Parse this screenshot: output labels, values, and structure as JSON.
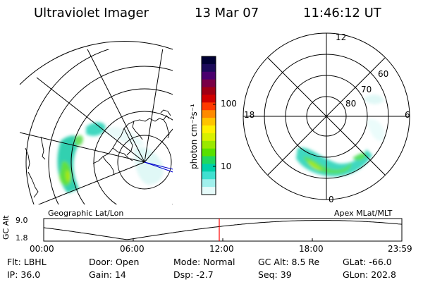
{
  "header": {
    "instrument": "Ultraviolet Imager",
    "date": "13 Mar 07",
    "time": "11:46:12 UT"
  },
  "colorbar": {
    "unit_label": "photon cm⁻²s⁻¹",
    "ticks": [
      "100",
      "10"
    ],
    "colors": [
      "#000033",
      "#1b0a5a",
      "#4a006e",
      "#7a0046",
      "#a00014",
      "#d00000",
      "#ff3a00",
      "#ff8a00",
      "#ffc400",
      "#fff000",
      "#d8f000",
      "#9ae800",
      "#58e000",
      "#20d860",
      "#00d0a8",
      "#40e0d0",
      "#a0f0ec",
      "#e6fbfa"
    ]
  },
  "left_map": {
    "caption": "Geographic Lat/Lon"
  },
  "right_map": {
    "caption": "Apex MLat/MLT",
    "mlt_labels": {
      "top": "12",
      "left": "18",
      "right": "6",
      "bottom": "0"
    },
    "lat_labels": [
      "60",
      "70",
      "80"
    ]
  },
  "timeline": {
    "axis_title": "GC Alt",
    "y_ticks": [
      "9.0",
      "1.8"
    ],
    "x_ticks": [
      "00:00",
      "06:00",
      "12:00",
      "18:00",
      "23:59"
    ],
    "current_marker_color": "#ff0000"
  },
  "info": {
    "col1": [
      {
        "label": "Flt:",
        "value": "LBHL"
      },
      {
        "label": "IP:",
        "value": "36.0"
      }
    ],
    "col2": [
      {
        "label": "Door:",
        "value": "Open"
      },
      {
        "label": "Gain:",
        "value": "14"
      }
    ],
    "col3": [
      {
        "label": "Mode:",
        "value": "Normal"
      },
      {
        "label": "Dsp:",
        "value": "-2.7"
      }
    ],
    "col4": [
      {
        "label": "GC Alt:",
        "value": "8.5 Re"
      },
      {
        "label": "Seq:",
        "value": "39"
      }
    ],
    "col5": [
      {
        "label": "GLat:",
        "value": "-66.0"
      },
      {
        "label": "GLon:",
        "value": "202.8"
      }
    ]
  }
}
